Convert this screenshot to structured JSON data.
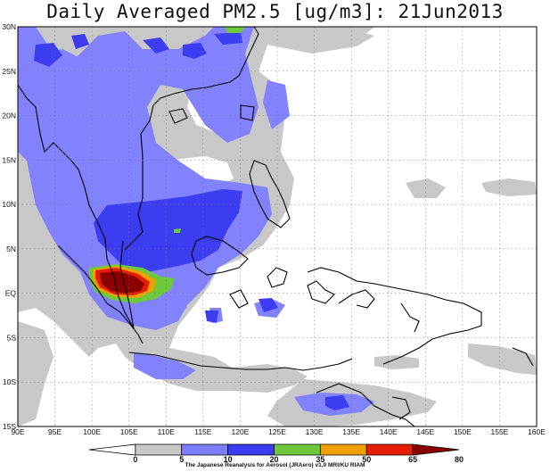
{
  "title": "Daily Averaged PM2.5 [ug/m3]: 21Jun2013",
  "credit": "The Japanese Reanalysis for Aerosol (JRAero) v1.0 MRI/KU RIAM",
  "map": {
    "lon_range": [
      90,
      160
    ],
    "lat_range": [
      -15,
      30
    ],
    "x_ticks": [
      "90E",
      "95E",
      "100E",
      "105E",
      "110E",
      "115E",
      "120E",
      "125E",
      "130E",
      "135E",
      "140E",
      "145E",
      "150E",
      "155E",
      "160E"
    ],
    "y_ticks": [
      "30N",
      "25N",
      "20N",
      "15N",
      "10N",
      "5N",
      "EQ",
      "5S",
      "10S",
      "15S"
    ],
    "gridlines": true
  },
  "colorbar": {
    "labels": [
      "0",
      "5",
      "10",
      "20",
      "35",
      "50",
      "65",
      "80"
    ],
    "colors": [
      "#ffffff",
      "#c8c8c8",
      "#7d7dff",
      "#3c3cf0",
      "#6ec83c",
      "#f0a000",
      "#e61e00",
      "#8c0000"
    ]
  },
  "colors": {
    "gray": "#c8c8c8",
    "light_blue": "#8282ff",
    "blue": "#3c3cf0",
    "green": "#6ec83c",
    "orange": "#f0a000",
    "red": "#e61e00",
    "dark_red": "#8c0000",
    "coast": "#000000"
  }
}
